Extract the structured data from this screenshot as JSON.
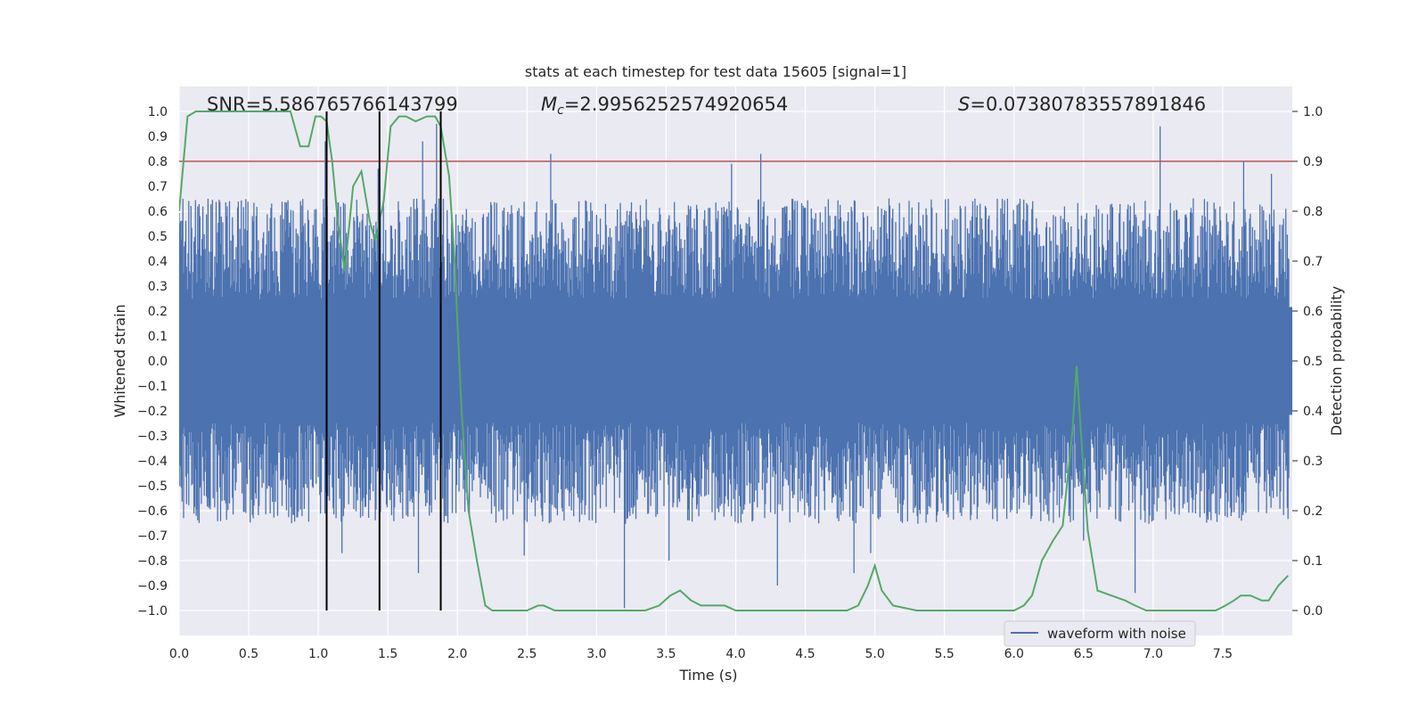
{
  "chart_data": {
    "type": "line",
    "title": "stats at each timestep for test data 15605 [signal=1]",
    "xlabel": "Time (s)",
    "ylabel": "Whitened strain",
    "y2label": "Detection probability",
    "xlim": [
      0.0,
      8.0
    ],
    "ylim": [
      -1.1,
      1.1
    ],
    "y2lim": [
      -0.05,
      1.05
    ],
    "xticks": [
      "0.0",
      "0.5",
      "1.0",
      "1.5",
      "2.0",
      "2.5",
      "3.0",
      "3.5",
      "4.0",
      "4.5",
      "5.0",
      "5.5",
      "6.0",
      "6.5",
      "7.0",
      "7.5"
    ],
    "yticks": [
      "1.0",
      "0.9",
      "0.8",
      "0.7",
      "0.6",
      "0.5",
      "0.4",
      "0.3",
      "0.2",
      "0.1",
      "0.0",
      "-0.1",
      "-0.2",
      "-0.3",
      "-0.4",
      "-0.5",
      "-0.6",
      "-0.7",
      "-0.8",
      "-0.9",
      "-1.0"
    ],
    "y2ticks": [
      "1.0",
      "0.9",
      "0.8",
      "0.7",
      "0.6",
      "0.5",
      "0.4",
      "0.3",
      "0.2",
      "0.1",
      "0.0"
    ],
    "grid": true,
    "legend_position": "bottom-right",
    "annotations": {
      "snr": "SNR=5.586765766143799",
      "mc_symbol": "M",
      "mc_subscript": "c",
      "mc_value": "=2.9956252574920654",
      "s_symbol": "S",
      "s_value": "=0.07380783557891846"
    },
    "threshold_line": {
      "axis": "right",
      "value": 0.9,
      "color": "#c44e52"
    },
    "vertical_lines": {
      "x": [
        1.06,
        1.44,
        1.88
      ],
      "ymin": -1.0,
      "ymax": 1.0,
      "color": "#000000"
    },
    "waveform": {
      "name": "waveform with noise",
      "color": "#4c72b0",
      "typical_amplitude": 0.45,
      "notable_peaks": [
        {
          "x": 1.05,
          "y": 0.88
        },
        {
          "x": 1.43,
          "y": 0.77
        },
        {
          "x": 1.75,
          "y": 0.88
        },
        {
          "x": 1.85,
          "y": 0.95
        },
        {
          "x": 2.67,
          "y": 0.83
        },
        {
          "x": 3.97,
          "y": 0.79
        },
        {
          "x": 4.18,
          "y": 0.83
        },
        {
          "x": 4.75,
          "y": 0.6
        },
        {
          "x": 5.88,
          "y": 0.65
        },
        {
          "x": 7.05,
          "y": 0.94
        },
        {
          "x": 7.65,
          "y": 0.8
        },
        {
          "x": 7.85,
          "y": 0.75
        }
      ],
      "notable_troughs": [
        {
          "x": 1.17,
          "y": -0.77
        },
        {
          "x": 1.72,
          "y": -0.85
        },
        {
          "x": 3.2,
          "y": -0.99
        },
        {
          "x": 3.52,
          "y": -0.8
        },
        {
          "x": 4.3,
          "y": -0.9
        },
        {
          "x": 4.85,
          "y": -0.85
        },
        {
          "x": 4.97,
          "y": -0.77
        },
        {
          "x": 6.87,
          "y": -0.93
        },
        {
          "x": 2.48,
          "y": -0.78
        },
        {
          "x": 6.5,
          "y": -0.72
        }
      ]
    },
    "detection_probability": {
      "color": "#55a868",
      "x": [
        0.0,
        0.06,
        0.12,
        0.2,
        0.3,
        0.4,
        0.5,
        0.6,
        0.7,
        0.8,
        0.87,
        0.93,
        0.98,
        1.02,
        1.06,
        1.1,
        1.14,
        1.19,
        1.25,
        1.31,
        1.37,
        1.41,
        1.44,
        1.47,
        1.52,
        1.58,
        1.63,
        1.7,
        1.78,
        1.84,
        1.88,
        1.94,
        1.98,
        2.03,
        2.08,
        2.14,
        2.2,
        2.25,
        2.35,
        2.5,
        2.58,
        2.62,
        2.7,
        2.8,
        3.0,
        3.2,
        3.35,
        3.45,
        3.53,
        3.6,
        3.68,
        3.75,
        3.8,
        3.85,
        3.92,
        4.0,
        4.2,
        4.4,
        4.6,
        4.8,
        4.88,
        4.95,
        5.0,
        5.05,
        5.13,
        5.3,
        5.5,
        5.8,
        6.0,
        6.07,
        6.13,
        6.2,
        6.28,
        6.35,
        6.42,
        6.45,
        6.48,
        6.53,
        6.6,
        6.7,
        6.8,
        6.87,
        6.95,
        7.2,
        7.45,
        7.52,
        7.58,
        7.63,
        7.7,
        7.78,
        7.83,
        7.9,
        7.97
      ],
      "y": [
        0.8,
        0.99,
        1.0,
        1.0,
        1.0,
        1.0,
        1.0,
        1.0,
        1.0,
        1.0,
        0.93,
        0.93,
        0.99,
        0.99,
        0.98,
        0.9,
        0.78,
        0.68,
        0.85,
        0.88,
        0.78,
        0.74,
        0.78,
        0.82,
        0.97,
        0.99,
        0.99,
        0.98,
        0.99,
        0.99,
        0.97,
        0.87,
        0.7,
        0.4,
        0.2,
        0.1,
        0.01,
        0.0,
        0.0,
        0.0,
        0.01,
        0.01,
        0.0,
        0.0,
        0.0,
        0.0,
        0.0,
        0.01,
        0.03,
        0.04,
        0.02,
        0.01,
        0.01,
        0.01,
        0.01,
        0.0,
        0.0,
        0.0,
        0.0,
        0.0,
        0.01,
        0.05,
        0.09,
        0.04,
        0.01,
        0.0,
        0.0,
        0.0,
        0.0,
        0.01,
        0.03,
        0.1,
        0.14,
        0.17,
        0.36,
        0.49,
        0.36,
        0.16,
        0.04,
        0.03,
        0.02,
        0.01,
        0.0,
        0.0,
        0.0,
        0.01,
        0.02,
        0.03,
        0.03,
        0.02,
        0.02,
        0.05,
        0.07
      ]
    }
  }
}
